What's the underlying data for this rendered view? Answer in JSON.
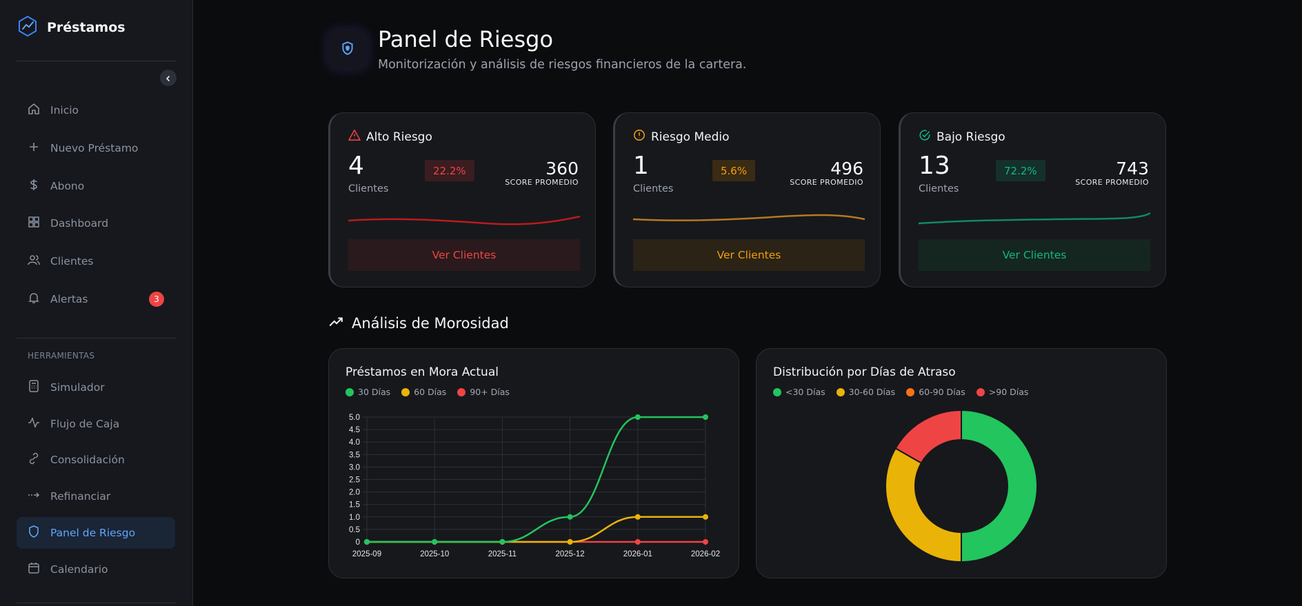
{
  "sidebar": {
    "brand": "Préstamos",
    "nav": [
      {
        "label": "Inicio",
        "icon": "home-icon"
      },
      {
        "label": "Nuevo Préstamo",
        "icon": "plus-icon"
      },
      {
        "label": "Abono",
        "icon": "dollar-icon"
      },
      {
        "label": "Dashboard",
        "icon": "grid-icon"
      },
      {
        "label": "Clientes",
        "icon": "users-icon"
      },
      {
        "label": "Alertas",
        "icon": "bell-icon",
        "badge": "3"
      }
    ],
    "tools_label": "HERRAMIENTAS",
    "tools": [
      {
        "label": "Simulador",
        "icon": "calculator-icon"
      },
      {
        "label": "Flujo de Caja",
        "icon": "activity-icon"
      },
      {
        "label": "Consolidación",
        "icon": "link-icon"
      },
      {
        "label": "Refinanciar",
        "icon": "refinance-arrow-icon"
      },
      {
        "label": "Panel de Riesgo",
        "icon": "shield-icon",
        "active": true
      },
      {
        "label": "Calendario",
        "icon": "calendar-icon"
      }
    ]
  },
  "header": {
    "title": "Panel de Riesgo",
    "subtitle": "Monitorización y análisis de riesgos financieros de la cartera."
  },
  "risk_cards": [
    {
      "title": "Alto Riesgo",
      "count": "4",
      "count_label": "Clientes",
      "percent": "22.2%",
      "score": "360",
      "score_label": "SCORE PROMEDIO",
      "button": "Ver Clientes",
      "color": "#ef4444",
      "btn_bg": "#2a1a1d",
      "pct_bg": "#3a1d20",
      "icon": "alert-triangle-icon"
    },
    {
      "title": "Riesgo Medio",
      "count": "1",
      "count_label": "Clientes",
      "percent": "5.6%",
      "score": "496",
      "score_label": "SCORE PROMEDIO",
      "button": "Ver Clientes",
      "color": "#f59e0b",
      "btn_bg": "#2b2316",
      "pct_bg": "#3a2b14",
      "icon": "alert-circle-icon"
    },
    {
      "title": "Bajo Riesgo",
      "count": "13",
      "count_label": "Clientes",
      "percent": "72.2%",
      "score": "743",
      "score_label": "SCORE PROMEDIO",
      "button": "Ver Clientes",
      "color": "#10b981",
      "btn_bg": "#152621",
      "pct_bg": "#15302a",
      "icon": "check-circle-icon"
    }
  ],
  "section": {
    "title": "Análisis de Morosidad"
  },
  "line_chart": {
    "title": "Préstamos en Mora Actual",
    "chart_data": {
      "type": "line",
      "x": [
        "2025-09",
        "2025-10",
        "2025-11",
        "2025-12",
        "2026-01",
        "2026-02"
      ],
      "series": [
        {
          "name": "30 Días",
          "color": "#22c55e",
          "values": [
            0,
            0,
            0,
            1,
            5,
            5
          ]
        },
        {
          "name": "60 Días",
          "color": "#eab308",
          "values": [
            0,
            0,
            0,
            0,
            1,
            1
          ]
        },
        {
          "name": "90+ Días",
          "color": "#ef4444",
          "values": [
            0,
            0,
            0,
            0,
            0,
            0
          ]
        }
      ],
      "yticks": [
        "5.0",
        "4.5",
        "4.0",
        "3.5",
        "3.0",
        "2.5",
        "2.0",
        "1.5",
        "1.0",
        "0.5",
        "0"
      ],
      "ylim": [
        0,
        5
      ],
      "grid": true,
      "legend": "top-left"
    }
  },
  "donut_chart": {
    "title": "Distribución por Días de Atraso",
    "chart_data": {
      "type": "pie",
      "categories": [
        "<30 Días",
        "30-60 Días",
        "60-90 Días",
        ">90 Días"
      ],
      "values": [
        50,
        33.3,
        0,
        16.7
      ],
      "colors": [
        "#22c55e",
        "#eab308",
        "#f97316",
        "#ef4444"
      ],
      "legend": "top-left"
    }
  }
}
